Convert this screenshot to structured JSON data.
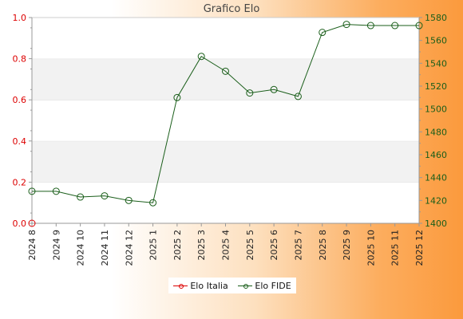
{
  "chart_data": {
    "type": "line",
    "title": "Grafico Elo",
    "categories": [
      "2024 8",
      "2024 9",
      "2024 10",
      "2024 11",
      "2024 12",
      "2025 1",
      "2025 2",
      "2025 3",
      "2025 4",
      "2025 5",
      "2025 6",
      "2025 7",
      "2025 8",
      "2025 9",
      "2025 10",
      "2025 11",
      "2025 12"
    ],
    "left_axis": {
      "range": [
        0,
        1
      ],
      "ticks": [
        "0.0",
        "0.2",
        "0.4",
        "0.6",
        "0.8",
        "1.0"
      ],
      "color": "#dd0000"
    },
    "right_axis": {
      "range": [
        1400,
        1580
      ],
      "ticks": [
        "1400",
        "1420",
        "1440",
        "1460",
        "1480",
        "1500",
        "1520",
        "1540",
        "1560",
        "1580"
      ],
      "color": "#1a5e1a"
    },
    "series": [
      {
        "name": "Elo Italia",
        "axis": "left",
        "color": "#dd0000",
        "values": [
          0,
          null,
          null,
          null,
          null,
          null,
          null,
          null,
          null,
          null,
          null,
          null,
          null,
          null,
          null,
          null,
          null
        ]
      },
      {
        "name": "Elo FIDE",
        "axis": "right",
        "color": "#1a5e1a",
        "values": [
          1428,
          1428,
          1423,
          1424,
          1420,
          1418,
          1510,
          1546,
          1533,
          1514,
          1517,
          1511,
          1567,
          1574,
          1573,
          1573,
          1573
        ]
      }
    ],
    "grid": "horizontal bands",
    "legend_position": "bottom-center"
  }
}
